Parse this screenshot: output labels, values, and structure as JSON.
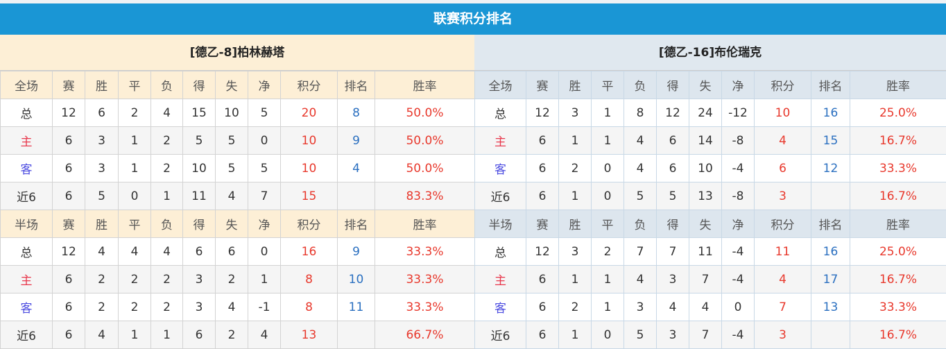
{
  "title": "联赛积分排名",
  "columns_full": [
    "全场",
    "赛",
    "胜",
    "平",
    "负",
    "得",
    "失",
    "净",
    "积分",
    "排名",
    "胜率"
  ],
  "columns_half": [
    "半场",
    "赛",
    "胜",
    "平",
    "负",
    "得",
    "失",
    "净",
    "积分",
    "排名",
    "胜率"
  ],
  "colors": {
    "header_bar": "#1a96d5",
    "points": "#e8382c",
    "rank": "#2a6fc0",
    "home_label": "#e8384c",
    "away_label": "#4b4be0"
  },
  "teams": [
    {
      "name": "[德乙-8]柏林赫塔",
      "full": [
        [
          "总",
          "12",
          "6",
          "2",
          "4",
          "15",
          "10",
          "5",
          "20",
          "8",
          "50.0%"
        ],
        [
          "主",
          "6",
          "3",
          "1",
          "2",
          "5",
          "5",
          "0",
          "10",
          "9",
          "50.0%"
        ],
        [
          "客",
          "6",
          "3",
          "1",
          "2",
          "10",
          "5",
          "5",
          "10",
          "4",
          "50.0%"
        ],
        [
          "近6",
          "6",
          "5",
          "0",
          "1",
          "11",
          "4",
          "7",
          "15",
          "",
          "83.3%"
        ]
      ],
      "half": [
        [
          "总",
          "12",
          "4",
          "4",
          "4",
          "6",
          "6",
          "0",
          "16",
          "9",
          "33.3%"
        ],
        [
          "主",
          "6",
          "2",
          "2",
          "2",
          "3",
          "2",
          "1",
          "8",
          "10",
          "33.3%"
        ],
        [
          "客",
          "6",
          "2",
          "2",
          "2",
          "3",
          "4",
          "-1",
          "8",
          "11",
          "33.3%"
        ],
        [
          "近6",
          "6",
          "4",
          "1",
          "1",
          "6",
          "2",
          "4",
          "13",
          "",
          "66.7%"
        ]
      ]
    },
    {
      "name": "[德乙-16]布伦瑞克",
      "full": [
        [
          "总",
          "12",
          "3",
          "1",
          "8",
          "12",
          "24",
          "-12",
          "10",
          "16",
          "25.0%"
        ],
        [
          "主",
          "6",
          "1",
          "1",
          "4",
          "6",
          "14",
          "-8",
          "4",
          "15",
          "16.7%"
        ],
        [
          "客",
          "6",
          "2",
          "0",
          "4",
          "6",
          "10",
          "-4",
          "6",
          "12",
          "33.3%"
        ],
        [
          "近6",
          "6",
          "1",
          "0",
          "5",
          "5",
          "13",
          "-8",
          "3",
          "",
          "16.7%"
        ]
      ],
      "half": [
        [
          "总",
          "12",
          "3",
          "2",
          "7",
          "7",
          "11",
          "-4",
          "11",
          "16",
          "25.0%"
        ],
        [
          "主",
          "6",
          "1",
          "1",
          "4",
          "3",
          "7",
          "-4",
          "4",
          "17",
          "16.7%"
        ],
        [
          "客",
          "6",
          "2",
          "1",
          "3",
          "4",
          "4",
          "0",
          "7",
          "13",
          "33.3%"
        ],
        [
          "近6",
          "6",
          "1",
          "0",
          "5",
          "3",
          "7",
          "-4",
          "3",
          "",
          "16.7%"
        ]
      ]
    }
  ]
}
